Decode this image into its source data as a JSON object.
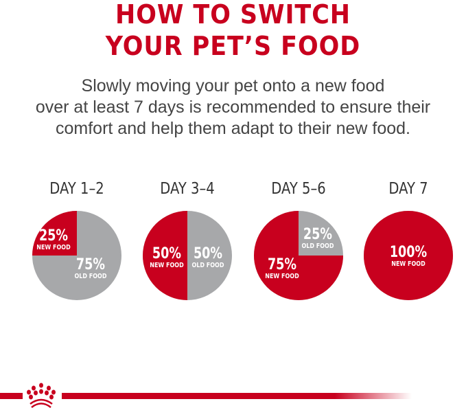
{
  "title": [
    "HOW TO SWITCH",
    "YOUR PET’S FOOD"
  ],
  "subtitle": [
    "Slowly moving your pet onto a new food",
    "over at least 7 days is recommended to ensure their",
    "comfort and help them adapt to their new food."
  ],
  "colors": {
    "new_food": "#c8001e",
    "old_food": "#a7a8aa",
    "title": "#c8001e"
  },
  "steps": [
    {
      "day": "DAY 1–2",
      "new_pct": 25,
      "new_label": "25%",
      "new_text": "NEW FOOD",
      "old_label": "75%",
      "old_text": "OLD FOOD"
    },
    {
      "day": "DAY 3–4",
      "new_pct": 50,
      "new_label": "50%",
      "new_text": "NEW FOOD",
      "old_label": "50%",
      "old_text": "OLD FOOD"
    },
    {
      "day": "DAY 5–6",
      "new_pct": 75,
      "new_label": "75%",
      "new_text": "NEW FOOD",
      "old_label": "25%",
      "old_text": "OLD FOOD"
    },
    {
      "day": "DAY 7",
      "new_pct": 100,
      "new_label": "100%",
      "new_text": "NEW FOOD"
    }
  ],
  "logo": "royal-canin-crown-logo"
}
